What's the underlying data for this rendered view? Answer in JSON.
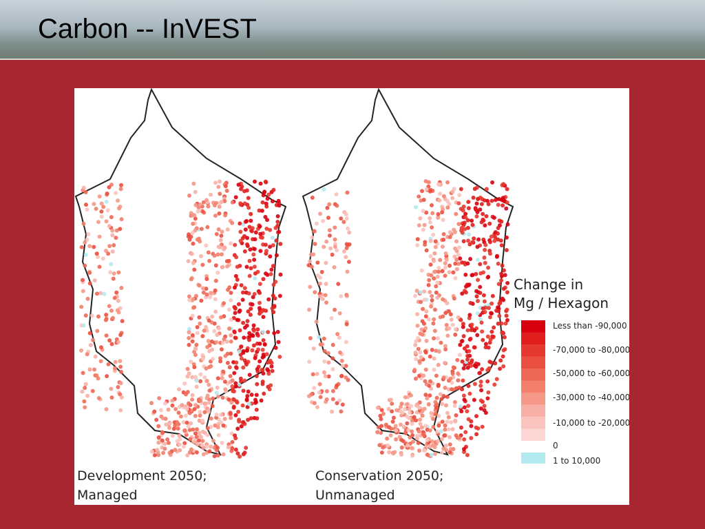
{
  "header": {
    "title": "Carbon -- InVEST"
  },
  "maps": [
    {
      "caption": [
        "Development 2050;",
        "Managed"
      ]
    },
    {
      "caption": [
        "Conservation 2050;",
        "Unmanaged"
      ]
    }
  ],
  "legend": {
    "title": [
      "Change in",
      "Mg / Hexagon"
    ],
    "labels": [
      "Less than -90,000",
      "-70,000 to -80,000",
      "-50,000 to -60,000",
      "-30,000 to -40,000",
      "-10,000 to -20,000",
      "0",
      "1 to 10,000"
    ],
    "colors": [
      "#d7000f",
      "#e01e1e",
      "#e5392f",
      "#ea5040",
      "#ee6855",
      "#f2806c",
      "#f59888",
      "#f8b0a6",
      "#fac3bd",
      "#fcd6d3",
      "#b2eaf0"
    ]
  }
}
